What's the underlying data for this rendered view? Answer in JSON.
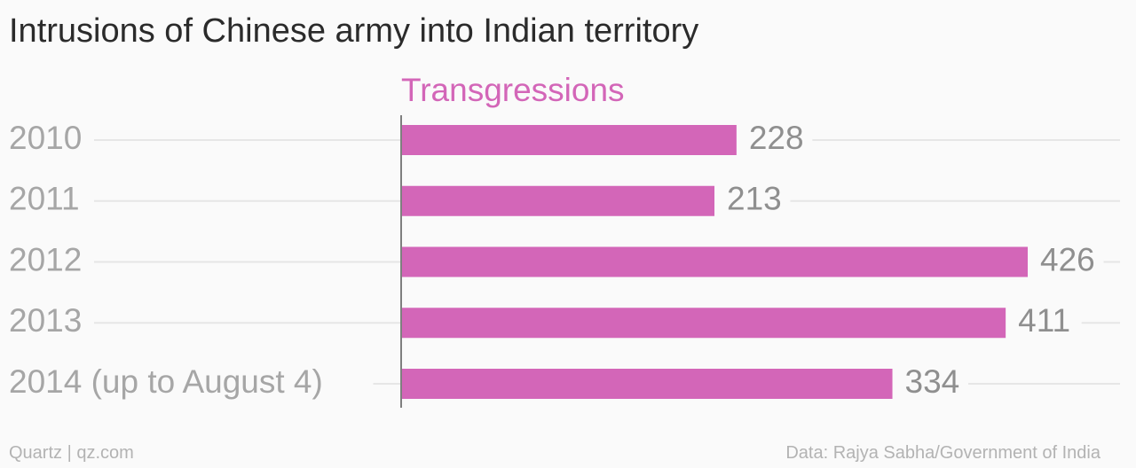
{
  "title": "Intrusions of Chinese army into Indian territory",
  "chart_data": {
    "type": "bar",
    "orientation": "horizontal",
    "series": [
      {
        "name": "Transgressions",
        "values": [
          228,
          213,
          426,
          411,
          334
        ]
      }
    ],
    "categories": [
      "2010",
      "2011",
      "2012",
      "2013",
      "2014 (up to August 4)"
    ],
    "data_labels": [
      "228",
      "213",
      "426",
      "411",
      "334"
    ],
    "xlim": [
      0,
      426
    ],
    "grid": true,
    "legend": "top",
    "bar_color": "#d366b8"
  },
  "footer": {
    "source_left": "Quartz | qz.com",
    "source_right": "Data: Rajya Sabha/Government of India"
  },
  "colors": {
    "title": "#2b2b2b",
    "category_label": "#a6a6a6",
    "value_label": "#8f8f8f",
    "series_label": "#d366b8",
    "gridline": "#e6e6e6",
    "axis": "#7f7f7f",
    "footer": "#b3b3b3"
  }
}
